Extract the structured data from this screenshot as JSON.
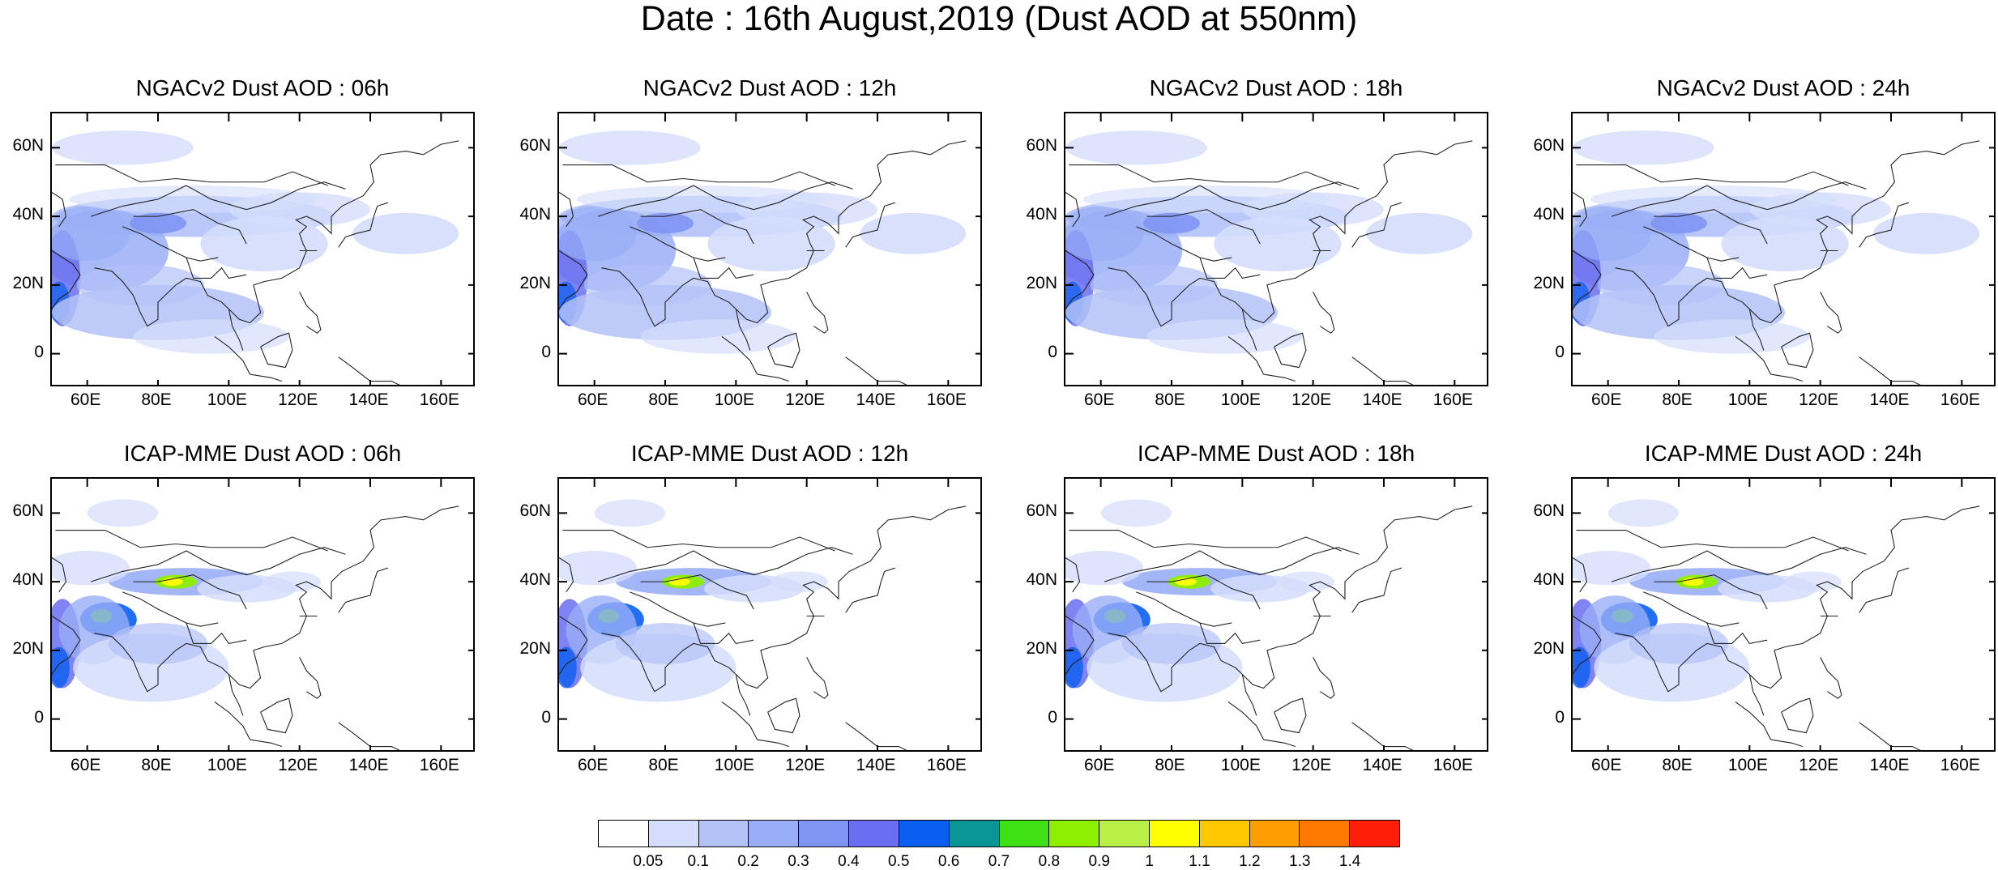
{
  "title": "Date : 16th August,2019 (Dust AOD at 550nm)",
  "lat_labels": [
    "60N",
    "40N",
    "20N",
    "0"
  ],
  "lon_labels": [
    "60E",
    "80E",
    "100E",
    "120E",
    "140E",
    "160E"
  ],
  "panels": [
    {
      "title": "NGACv2 Dust AOD : 06h",
      "model": "NGACv2",
      "hour": "06h"
    },
    {
      "title": "NGACv2 Dust AOD : 12h",
      "model": "NGACv2",
      "hour": "12h"
    },
    {
      "title": "NGACv2 Dust AOD : 18h",
      "model": "NGACv2",
      "hour": "18h"
    },
    {
      "title": "NGACv2 Dust AOD : 24h",
      "model": "NGACv2",
      "hour": "24h"
    },
    {
      "title": "ICAP-MME Dust AOD : 06h",
      "model": "ICAP-MME",
      "hour": "06h"
    },
    {
      "title": "ICAP-MME Dust AOD : 12h",
      "model": "ICAP-MME",
      "hour": "12h"
    },
    {
      "title": "ICAP-MME Dust AOD : 18h",
      "model": "ICAP-MME",
      "hour": "18h"
    },
    {
      "title": "ICAP-MME Dust AOD : 24h",
      "model": "ICAP-MME",
      "hour": "24h"
    }
  ],
  "colorbar": {
    "labels": [
      "0.05",
      "0.1",
      "0.2",
      "0.3",
      "0.4",
      "0.5",
      "0.6",
      "0.7",
      "0.8",
      "0.9",
      "1",
      "1.1",
      "1.2",
      "1.3",
      "1.4"
    ],
    "colors": [
      "#ffffff",
      "#d4ddfb",
      "#b3c2f8",
      "#99aef6",
      "#8095f3",
      "#6a6ef0",
      "#0a5ef0",
      "#0a9696",
      "#3fe014",
      "#8ef000",
      "#b8f046",
      "#ffff00",
      "#ffc800",
      "#ff9e00",
      "#ff7800",
      "#ff1e0a"
    ]
  },
  "map_extent": {
    "lon_min": 50,
    "lon_max": 170,
    "lat_min": -10,
    "lat_max": 70
  }
}
